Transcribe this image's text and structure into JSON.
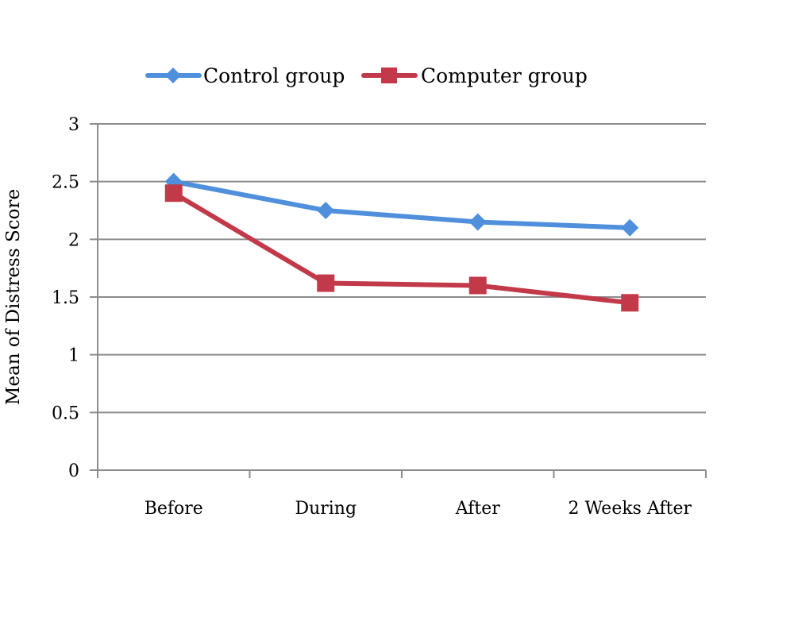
{
  "chart_data": {
    "type": "line",
    "categories": [
      "Before",
      "During",
      "After",
      "2 Weeks After"
    ],
    "series": [
      {
        "name": "Control group",
        "values": [
          2.5,
          2.25,
          2.15,
          2.1
        ],
        "color": "#4f8fdc",
        "marker": "diamond"
      },
      {
        "name": "Computer group",
        "values": [
          2.4,
          1.62,
          1.6,
          1.45
        ],
        "color": "#c23a49",
        "marker": "square"
      }
    ],
    "ylabel": "Mean of Distress Score",
    "ylim": [
      0,
      3
    ],
    "yticks": [
      "0",
      "0.5",
      "1",
      "1.5",
      "2",
      "2.5",
      "3"
    ],
    "grid": true,
    "legend_position": "top"
  }
}
